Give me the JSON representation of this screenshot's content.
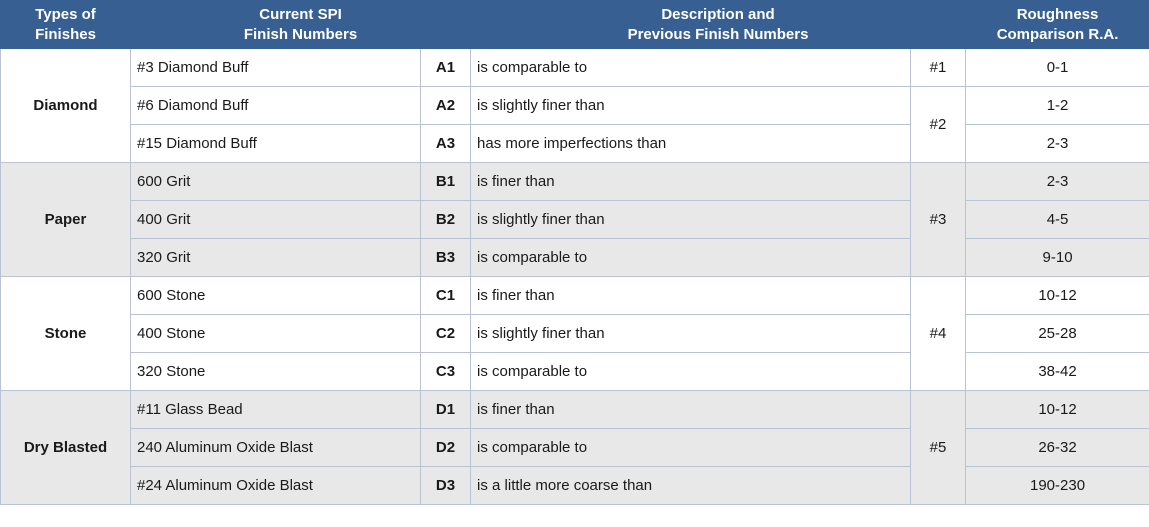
{
  "headers": {
    "types": "Types of\nFinishes",
    "spi": "Current SPI\nFinish Numbers",
    "desc": "Description and\nPrevious Finish Numbers",
    "rough": "Roughness\nComparison R.A."
  },
  "groups": [
    {
      "type": "Diamond",
      "alt": false,
      "rows": [
        {
          "spi": "#3 Diamond Buff",
          "code": "A1",
          "desc": "is comparable to",
          "prev": "#1",
          "prev_span": 1,
          "rough": "0-1"
        },
        {
          "spi": "#6 Diamond Buff",
          "code": "A2",
          "desc": "is slightly finer than",
          "prev": "#2",
          "prev_span": 2,
          "rough": "1-2"
        },
        {
          "spi": "#15 Diamond Buff",
          "code": "A3",
          "desc": "has more imperfections than",
          "prev": null,
          "prev_span": 0,
          "rough": "2-3"
        }
      ]
    },
    {
      "type": "Paper",
      "alt": true,
      "rows": [
        {
          "spi": "600 Grit",
          "code": "B1",
          "desc": "is finer than",
          "prev": "#3",
          "prev_span": 3,
          "rough": "2-3"
        },
        {
          "spi": "400 Grit",
          "code": "B2",
          "desc": "is slightly finer than",
          "prev": null,
          "prev_span": 0,
          "rough": "4-5"
        },
        {
          "spi": "320 Grit",
          "code": "B3",
          "desc": "is comparable to",
          "prev": null,
          "prev_span": 0,
          "rough": "9-10"
        }
      ]
    },
    {
      "type": "Stone",
      "alt": false,
      "rows": [
        {
          "spi": "600 Stone",
          "code": "C1",
          "desc": "is finer than",
          "prev": "#4",
          "prev_span": 3,
          "rough": "10-12"
        },
        {
          "spi": "400 Stone",
          "code": "C2",
          "desc": "is slightly finer than",
          "prev": null,
          "prev_span": 0,
          "rough": "25-28"
        },
        {
          "spi": "320 Stone",
          "code": "C3",
          "desc": "is comparable to",
          "prev": null,
          "prev_span": 0,
          "rough": "38-42"
        }
      ]
    },
    {
      "type": "Dry Blasted",
      "alt": true,
      "rows": [
        {
          "spi": "#11 Glass Bead",
          "code": "D1",
          "desc": "is finer than",
          "prev": "#5",
          "prev_span": 3,
          "rough": "10-12"
        },
        {
          "spi": "240 Aluminum Oxide Blast",
          "code": "D2",
          "desc": "is comparable to",
          "prev": null,
          "prev_span": 0,
          "rough": "26-32"
        },
        {
          "spi": "#24 Aluminum Oxide Blast",
          "code": "D3",
          "desc": "is a little more coarse than",
          "prev": null,
          "prev_span": 0,
          "rough": "190-230"
        }
      ]
    }
  ]
}
